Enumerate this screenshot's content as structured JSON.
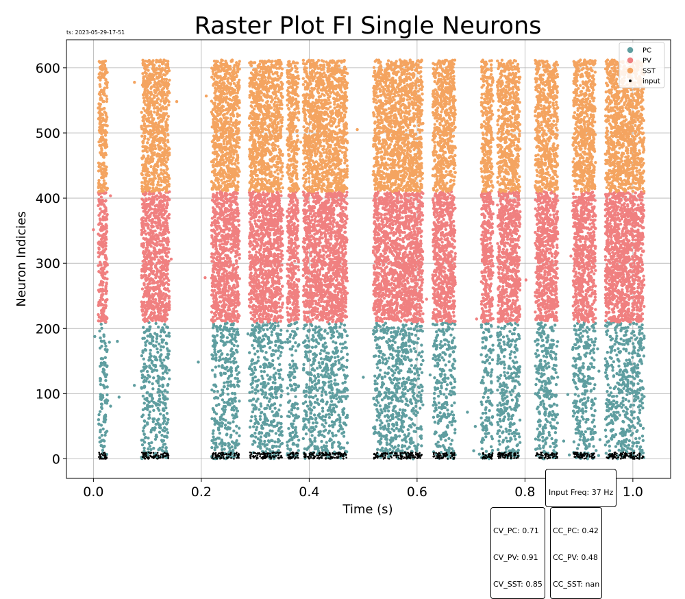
{
  "colors": {
    "PC": "#5f9ea0",
    "PV": "#f08080",
    "SST": "#f4a460",
    "input": "#000000",
    "grid": "#b0b0b0"
  },
  "chart_data": {
    "type": "scatter",
    "title": "Raster Plot FI Single Neurons",
    "timestamp": "ts: 2023-05-29-17-51",
    "xlabel": "Time (s)",
    "ylabel": "Neuron Indicies",
    "xlim": [
      -0.05,
      1.07
    ],
    "ylim": [
      -30,
      643
    ],
    "xticks": [
      0.0,
      0.2,
      0.4,
      0.6,
      0.8,
      1.0
    ],
    "xtick_labels": [
      "0.0",
      "0.2",
      "0.4",
      "0.6",
      "0.8",
      "1.0"
    ],
    "yticks": [
      0,
      100,
      200,
      300,
      400,
      500,
      600
    ],
    "ytick_labels": [
      "0",
      "100",
      "200",
      "300",
      "400",
      "500",
      "600"
    ],
    "grid": true,
    "legend_position": "top-right",
    "burst_windows_s": [
      [
        0.01,
        0.025
      ],
      [
        0.09,
        0.14
      ],
      [
        0.22,
        0.27
      ],
      [
        0.29,
        0.35
      ],
      [
        0.36,
        0.38
      ],
      [
        0.39,
        0.44
      ],
      [
        0.44,
        0.47
      ],
      [
        0.52,
        0.55
      ],
      [
        0.55,
        0.61
      ],
      [
        0.63,
        0.67
      ],
      [
        0.72,
        0.74
      ],
      [
        0.75,
        0.79
      ],
      [
        0.82,
        0.86
      ],
      [
        0.89,
        0.93
      ],
      [
        0.95,
        1.02
      ]
    ],
    "series": [
      {
        "name": "PC",
        "neuron_range": [
          0,
          210
        ],
        "marker": "dot"
      },
      {
        "name": "PV",
        "neuron_range": [
          210,
          410
        ],
        "marker": "dot"
      },
      {
        "name": "SST",
        "neuron_range": [
          410,
          612
        ],
        "marker": "dot"
      },
      {
        "name": "input",
        "neuron_range": [
          0,
          10
        ],
        "marker": "dot"
      }
    ],
    "annotations": {
      "input_freq": "Input Freq: 37 Hz",
      "cv": [
        "CV_PC: 0.71",
        "CV_PV: 0.91",
        "CV_SST: 0.85"
      ],
      "cc": [
        "CC_PC: 0.42",
        "CC_PV: 0.48",
        "CC_SST: nan"
      ]
    }
  }
}
